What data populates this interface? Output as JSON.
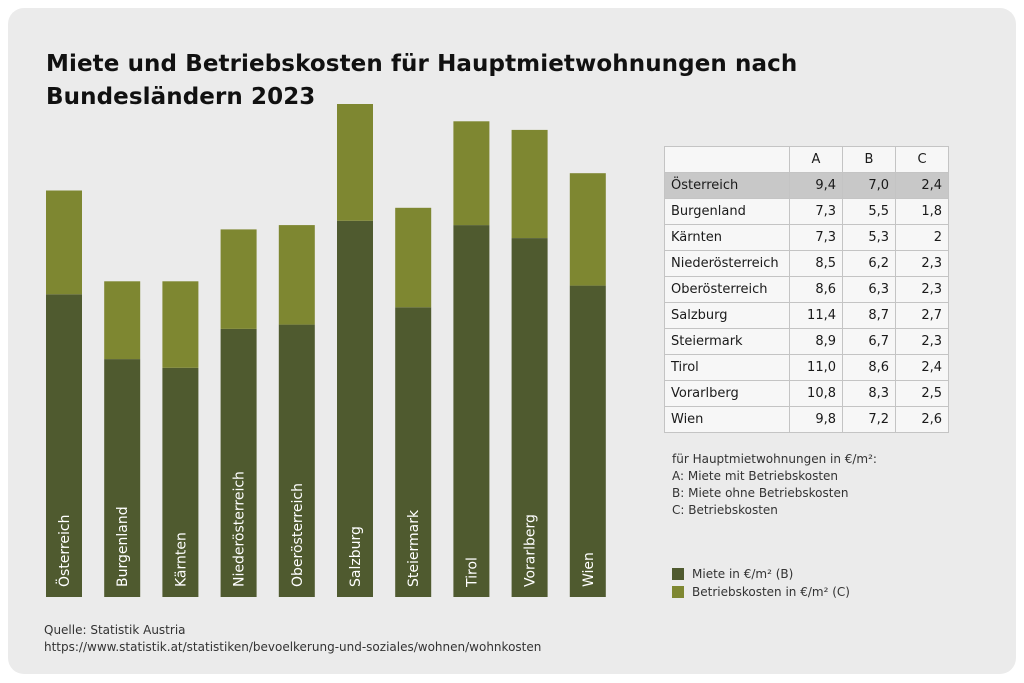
{
  "title": "Miete und Betriebskosten für Hauptmietwohnungen nach Bundesländern 2023",
  "colors": {
    "miete": "#4f5a2f",
    "betriebskosten": "#7e8731",
    "card": "#ebebeb",
    "highlight": "#c8c8c8"
  },
  "chart_data": {
    "type": "bar",
    "stacked": true,
    "categories": [
      "Österreich",
      "Burgenland",
      "Kärnten",
      "Niederösterreich",
      "Oberösterreich",
      "Salzburg",
      "Steiermark",
      "Tirol",
      "Vorarlberg",
      "Wien"
    ],
    "series": [
      {
        "name": "Miete in €/m² (B)",
        "values": [
          7.0,
          5.5,
          5.3,
          6.2,
          6.3,
          8.7,
          6.7,
          8.6,
          8.3,
          7.2
        ]
      },
      {
        "name": "Betriebskosten in €/m² (C)",
        "values": [
          2.4,
          1.8,
          2.0,
          2.3,
          2.3,
          2.7,
          2.3,
          2.4,
          2.5,
          2.6
        ]
      }
    ],
    "ylim": [
      0,
      11.4
    ],
    "grid": false,
    "legend": "bottom-right"
  },
  "table": {
    "headers": [
      "",
      "A",
      "B",
      "C"
    ],
    "rows": [
      [
        "Österreich",
        "9,4",
        "7,0",
        "2,4"
      ],
      [
        "Burgenland",
        "7,3",
        "5,5",
        "1,8"
      ],
      [
        "Kärnten",
        "7,3",
        "5,3",
        "2"
      ],
      [
        "Niederösterreich",
        "8,5",
        "6,2",
        "2,3"
      ],
      [
        "Oberösterreich",
        "8,6",
        "6,3",
        "2,3"
      ],
      [
        "Salzburg",
        "11,4",
        "8,7",
        "2,7"
      ],
      [
        "Steiermark",
        "8,9",
        "6,7",
        "2,3"
      ],
      [
        "Tirol",
        "11,0",
        "8,6",
        "2,4"
      ],
      [
        "Vorarlberg",
        "10,8",
        "8,3",
        "2,5"
      ],
      [
        "Wien",
        "9,8",
        "7,2",
        "2,6"
      ]
    ]
  },
  "notes": [
    "für Hauptmietwohnungen in €/m²:",
    "A: Miete mit Betriebskosten",
    "B: Miete ohne Betriebskosten",
    "C: Betriebskosten"
  ],
  "legend": [
    {
      "label": "Miete in €/m² (B)",
      "color": "#4f5a2f"
    },
    {
      "label": "Betriebskosten in €/m² (C)",
      "color": "#7e8731"
    }
  ],
  "source": {
    "label": "Quelle: Statistik Austria",
    "url": "https://www.statistik.at/statistiken/bevoelkerung-und-soziales/wohnen/wohnkosten"
  }
}
